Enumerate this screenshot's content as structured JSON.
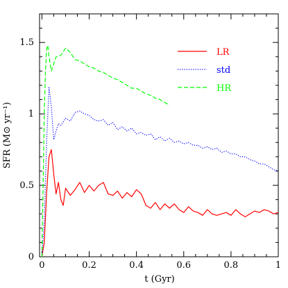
{
  "chart_data": {
    "type": "line",
    "xlabel": "t  (Gyr)",
    "ylabel": "SFR  (M⊙ yr⁻¹)",
    "xlim": [
      -0.01,
      1.0
    ],
    "ylim": [
      0,
      1.7
    ],
    "xticks": [
      0,
      0.2,
      0.4,
      0.6,
      0.8,
      1
    ],
    "xtick_labels": [
      "0",
      "0.2",
      "0.4",
      "0.6",
      "0.8",
      "1"
    ],
    "yticks": [
      0,
      0.5,
      1,
      1.5
    ],
    "ytick_labels": [
      "0",
      "0.5",
      "1",
      "1.5"
    ],
    "grid": false,
    "legend_position": "top-right",
    "series": [
      {
        "name": "LR",
        "color": "#ff0000",
        "dash": "solid",
        "x": [
          0,
          0.01,
          0.02,
          0.03,
          0.04,
          0.05,
          0.06,
          0.07,
          0.08,
          0.09,
          0.1,
          0.12,
          0.14,
          0.16,
          0.18,
          0.2,
          0.22,
          0.24,
          0.26,
          0.28,
          0.3,
          0.32,
          0.34,
          0.36,
          0.38,
          0.4,
          0.42,
          0.44,
          0.46,
          0.48,
          0.5,
          0.52,
          0.54,
          0.56,
          0.58,
          0.6,
          0.62,
          0.64,
          0.66,
          0.68,
          0.7,
          0.72,
          0.74,
          0.76,
          0.78,
          0.8,
          0.82,
          0.84,
          0.86,
          0.88,
          0.9,
          0.92,
          0.94,
          0.96,
          0.98,
          1.0
        ],
        "y": [
          0,
          0.1,
          0.45,
          0.7,
          0.75,
          0.58,
          0.44,
          0.52,
          0.4,
          0.36,
          0.48,
          0.43,
          0.47,
          0.52,
          0.45,
          0.5,
          0.46,
          0.5,
          0.52,
          0.44,
          0.43,
          0.46,
          0.41,
          0.45,
          0.42,
          0.47,
          0.44,
          0.36,
          0.34,
          0.38,
          0.33,
          0.37,
          0.34,
          0.37,
          0.33,
          0.31,
          0.35,
          0.32,
          0.31,
          0.29,
          0.33,
          0.3,
          0.29,
          0.3,
          0.31,
          0.29,
          0.33,
          0.3,
          0.28,
          0.3,
          0.32,
          0.31,
          0.33,
          0.32,
          0.3,
          0.31
        ]
      },
      {
        "name": "std",
        "color": "#0000ff",
        "dash": "dotted",
        "x": [
          0,
          0.01,
          0.02,
          0.03,
          0.04,
          0.05,
          0.06,
          0.07,
          0.08,
          0.1,
          0.12,
          0.14,
          0.16,
          0.18,
          0.2,
          0.22,
          0.24,
          0.26,
          0.28,
          0.3,
          0.32,
          0.34,
          0.36,
          0.38,
          0.4,
          0.42,
          0.44,
          0.46,
          0.48,
          0.5,
          0.52,
          0.54,
          0.56,
          0.58,
          0.6,
          0.62,
          0.64,
          0.66,
          0.68,
          0.7,
          0.72,
          0.74,
          0.76,
          0.78,
          0.8,
          0.82,
          0.84,
          0.86,
          0.88,
          0.9,
          0.92,
          0.94,
          0.96,
          0.98,
          1.0
        ],
        "y": [
          0,
          0.25,
          0.8,
          1.19,
          1.05,
          0.82,
          0.88,
          0.93,
          0.92,
          0.97,
          0.95,
          1.01,
          1.02,
          1.0,
          0.99,
          0.96,
          0.95,
          0.96,
          0.92,
          0.94,
          0.89,
          0.91,
          0.88,
          0.9,
          0.86,
          0.87,
          0.85,
          0.86,
          0.82,
          0.84,
          0.81,
          0.83,
          0.8,
          0.81,
          0.79,
          0.8,
          0.78,
          0.78,
          0.76,
          0.77,
          0.75,
          0.76,
          0.73,
          0.74,
          0.72,
          0.72,
          0.7,
          0.7,
          0.68,
          0.67,
          0.65,
          0.65,
          0.63,
          0.61,
          0.6
        ]
      },
      {
        "name": "HR",
        "color": "#00ff00",
        "dash": "dashed",
        "x": [
          0,
          0.005,
          0.01,
          0.015,
          0.02,
          0.025,
          0.03,
          0.04,
          0.05,
          0.06,
          0.08,
          0.1,
          0.12,
          0.14,
          0.16,
          0.18,
          0.2,
          0.22,
          0.24,
          0.26,
          0.28,
          0.3,
          0.32,
          0.34,
          0.36,
          0.38,
          0.4,
          0.42,
          0.44,
          0.46,
          0.48,
          0.5,
          0.52,
          0.54
        ],
        "y": [
          0,
          0.5,
          1.0,
          1.3,
          1.45,
          1.48,
          1.4,
          1.3,
          1.35,
          1.4,
          1.41,
          1.46,
          1.43,
          1.38,
          1.37,
          1.35,
          1.33,
          1.32,
          1.3,
          1.29,
          1.27,
          1.25,
          1.24,
          1.22,
          1.2,
          1.18,
          1.18,
          1.16,
          1.14,
          1.13,
          1.11,
          1.1,
          1.08,
          1.06
        ]
      }
    ]
  }
}
